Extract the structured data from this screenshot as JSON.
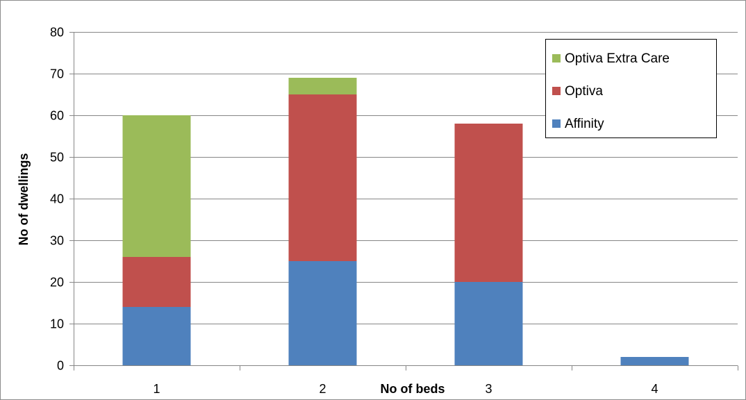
{
  "chart_data": {
    "type": "bar",
    "stacked": true,
    "categories": [
      "1",
      "2",
      "3",
      "4"
    ],
    "series": [
      {
        "name": "Affinity",
        "color": "#4f81bd",
        "values": [
          14,
          25,
          20,
          2
        ]
      },
      {
        "name": "Optiva",
        "color": "#c0504d",
        "values": [
          12,
          40,
          38,
          0
        ]
      },
      {
        "name": "Optiva Extra Care",
        "color": "#9bbb59",
        "values": [
          34,
          4,
          0,
          0
        ]
      }
    ],
    "title": "",
    "xlabel": "No of beds",
    "ylabel": "No of dwellings",
    "ylim": [
      0,
      80
    ],
    "yticks": [
      "0",
      "10",
      "20",
      "30",
      "40",
      "50",
      "60",
      "70",
      "80"
    ],
    "grid": true,
    "legend_position": "top-right"
  }
}
